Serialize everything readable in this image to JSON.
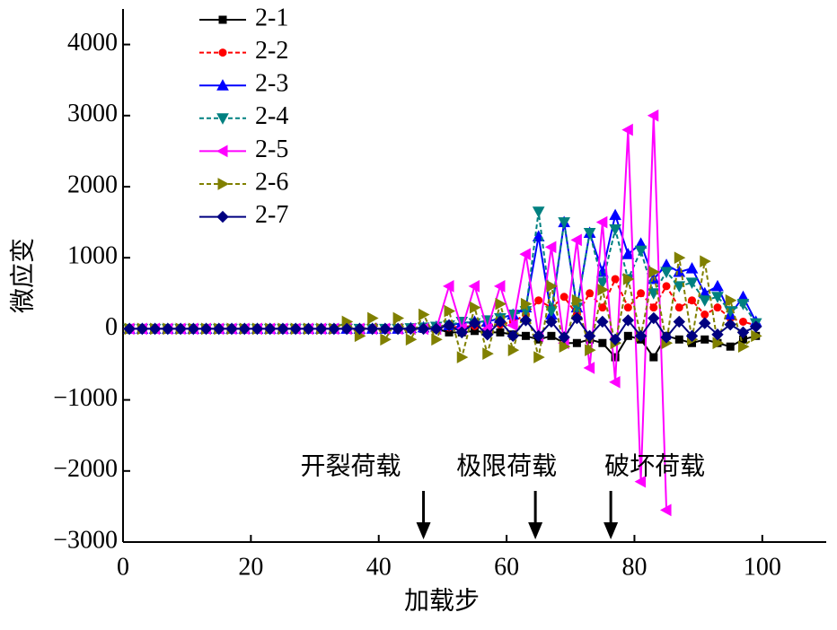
{
  "chart_data": {
    "type": "line",
    "x_label": "加载步",
    "y_label": "微应变",
    "x": [
      1,
      3,
      5,
      7,
      9,
      11,
      13,
      15,
      17,
      19,
      21,
      23,
      25,
      27,
      29,
      31,
      33,
      35,
      37,
      39,
      41,
      43,
      45,
      47,
      49,
      51,
      53,
      55,
      57,
      59,
      61,
      63,
      65,
      67,
      69,
      71,
      73,
      75,
      77,
      79,
      81,
      83,
      85,
      87,
      89,
      91,
      93,
      95,
      97,
      99
    ],
    "series": [
      {
        "name": "2-1",
        "color": "#000000",
        "marker": "square",
        "dashed": false,
        "values": [
          0,
          0,
          0,
          0,
          0,
          0,
          0,
          0,
          0,
          0,
          0,
          0,
          0,
          0,
          0,
          0,
          0,
          0,
          0,
          0,
          0,
          0,
          0,
          0,
          0,
          -50,
          -50,
          -30,
          -50,
          -50,
          -80,
          -100,
          -150,
          -100,
          -200,
          -200,
          -150,
          -200,
          -400,
          -100,
          -150,
          -400,
          -100,
          -150,
          -200,
          -150,
          -200,
          -250,
          -150,
          -100
        ]
      },
      {
        "name": "2-2",
        "color": "#ff0000",
        "marker": "circle",
        "dashed": true,
        "values": [
          0,
          0,
          0,
          0,
          0,
          0,
          0,
          0,
          0,
          0,
          0,
          0,
          0,
          0,
          0,
          0,
          0,
          0,
          0,
          0,
          0,
          0,
          0,
          10,
          10,
          20,
          30,
          40,
          50,
          60,
          100,
          200,
          400,
          300,
          450,
          200,
          500,
          300,
          700,
          300,
          500,
          300,
          600,
          300,
          400,
          200,
          300,
          150,
          100,
          50
        ]
      },
      {
        "name": "2-3",
        "color": "#0000ff",
        "marker": "triangle-up",
        "dashed": false,
        "values": [
          0,
          0,
          0,
          0,
          0,
          0,
          0,
          0,
          0,
          0,
          0,
          0,
          0,
          0,
          0,
          0,
          0,
          0,
          0,
          0,
          0,
          0,
          10,
          20,
          30,
          50,
          80,
          100,
          100,
          150,
          200,
          300,
          1300,
          200,
          1500,
          300,
          1350,
          800,
          1600,
          1050,
          1200,
          700,
          900,
          800,
          850,
          500,
          600,
          200,
          450,
          100
        ]
      },
      {
        "name": "2-4",
        "color": "#008080",
        "marker": "triangle-down",
        "dashed": true,
        "values": [
          0,
          0,
          0,
          0,
          0,
          0,
          0,
          0,
          0,
          0,
          0,
          0,
          0,
          0,
          0,
          0,
          0,
          0,
          0,
          0,
          0,
          0,
          10,
          20,
          30,
          50,
          100,
          80,
          120,
          150,
          200,
          250,
          1650,
          250,
          1500,
          300,
          1350,
          650,
          1400,
          700,
          1100,
          500,
          800,
          600,
          650,
          400,
          450,
          250,
          350,
          80
        ]
      },
      {
        "name": "2-5",
        "color": "#ff00ff",
        "marker": "triangle-left",
        "dashed": false,
        "values": [
          0,
          0,
          0,
          0,
          0,
          0,
          0,
          0,
          0,
          0,
          0,
          0,
          0,
          0,
          0,
          0,
          0,
          0,
          0,
          0,
          0,
          0,
          0,
          0,
          0,
          600,
          0,
          600,
          0,
          600,
          50,
          1050,
          -100,
          1150,
          -200,
          1250,
          -550,
          1500,
          -750,
          2800,
          -2150,
          3000,
          -2550,
          null,
          null,
          null,
          null,
          null,
          null,
          null
        ]
      },
      {
        "name": "2-6",
        "color": "#808000",
        "marker": "triangle-right",
        "dashed": true,
        "values": [
          0,
          0,
          0,
          0,
          0,
          0,
          0,
          0,
          0,
          0,
          0,
          0,
          0,
          0,
          0,
          0,
          0,
          100,
          -100,
          150,
          -150,
          150,
          -150,
          200,
          -150,
          250,
          -400,
          300,
          -350,
          350,
          -300,
          350,
          -400,
          600,
          -250,
          400,
          -300,
          550,
          -200,
          700,
          -100,
          800,
          -200,
          1000,
          -150,
          950,
          -200,
          400,
          -250,
          -100
        ]
      },
      {
        "name": "2-7",
        "color": "#000080",
        "marker": "diamond",
        "dashed": false,
        "values": [
          0,
          0,
          0,
          0,
          0,
          0,
          0,
          0,
          0,
          0,
          0,
          0,
          0,
          0,
          0,
          0,
          0,
          0,
          0,
          0,
          0,
          0,
          0,
          0,
          0,
          50,
          -50,
          80,
          -80,
          100,
          -100,
          120,
          -100,
          100,
          -120,
          150,
          -100,
          100,
          -150,
          120,
          -100,
          150,
          -120,
          100,
          -100,
          80,
          -80,
          60,
          -50,
          30
        ]
      }
    ],
    "xlim": [
      0,
      110
    ],
    "xticks": [
      0,
      20,
      40,
      60,
      80,
      100
    ],
    "ylim": [
      -3000,
      4500
    ],
    "yticks": [
      {
        "value": -3000,
        "label": "−3000"
      },
      {
        "value": -2000,
        "label": "−2000"
      },
      {
        "value": -1000,
        "label": "−1000"
      },
      0,
      1000,
      2000,
      3000,
      4000
    ],
    "legend": "upper-left",
    "annotations": [
      {
        "text": "开裂荷载",
        "x": 47
      },
      {
        "text": "极限荷载",
        "x": 64.5
      },
      {
        "text": "破坏荷载",
        "x": 76.3
      }
    ]
  }
}
